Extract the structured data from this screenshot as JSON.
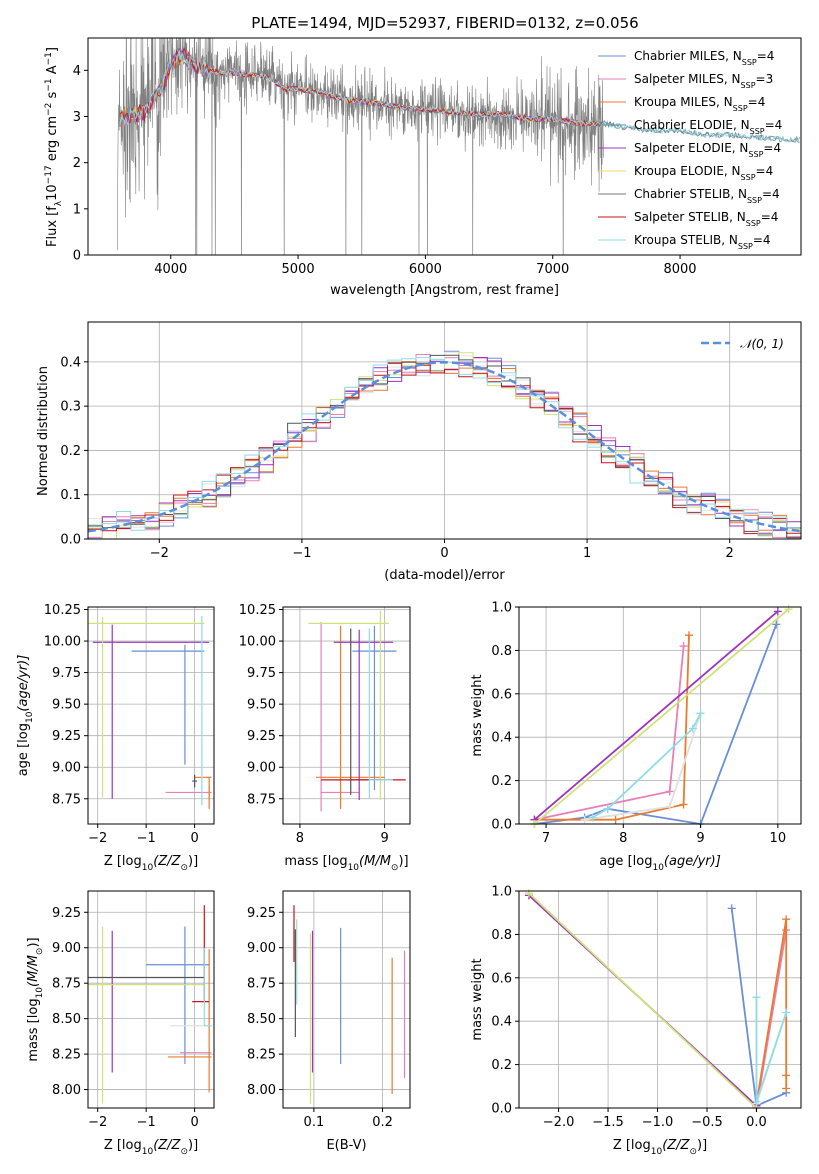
{
  "figure": {
    "title": "PLATE=1494, MJD=52937, FIBERID=0132, z=0.056"
  },
  "colors": {
    "spectrum": "#7f7f7f",
    "grid": "#b0b0b0",
    "gauss": "#5b8fd9",
    "models": [
      "#6a8ed8",
      "#e77fb8",
      "#ec7a2c",
      "#5c8fa0",
      "#9d34c0",
      "#f2d95c",
      "#7a7a7a",
      "#c8141c",
      "#8fdce9"
    ],
    "bright": [
      "#6a8ed8",
      "#e77fb8",
      "#ec7a2c",
      "#e0e0e0",
      "#9d34c0",
      "#cfe37a",
      "#555555",
      "#c8141c",
      "#8fdce9"
    ]
  },
  "legend_names": [
    "Chabrier MILES, N",
    "Salpeter MILES, N",
    "Kroupa MILES, N",
    "Chabrier ELODIE, N",
    "Salpeter ELODIE, N",
    "Kroupa ELODIE, N",
    "Chabrier STELIB, N",
    "Salpeter STELIB, N",
    "Kroupa STELIB, N"
  ],
  "legend_sub": "SSP",
  "legend_vals": [
    "=4",
    "=3",
    "=4",
    "=4",
    "=4",
    "=4",
    "=4",
    "=4",
    "=4"
  ],
  "gauss_legend": "𝒩(0, 1)",
  "chart_data": [
    {
      "type": "line",
      "title": "PLATE=1494, MJD=52937, FIBERID=0132, z=0.056",
      "xlabel": "wavelength [Angstrom, rest frame]",
      "ylabel_parts": [
        "Flux [f",
        "λ",
        "10",
        "−17",
        " erg cm",
        "−2",
        " s",
        "−1",
        " A",
        "−1",
        "]"
      ],
      "xlim": [
        3350,
        8950
      ],
      "ylim": [
        0,
        4.7
      ],
      "xticks": [
        4000,
        5000,
        6000,
        7000,
        8000
      ],
      "yticks": [
        0,
        1,
        2,
        3,
        4
      ],
      "observed_range": [
        3580,
        7400
      ],
      "model_continuum": {
        "x": [
          3600,
          3700,
          3800,
          3900,
          4000,
          4100,
          4200,
          4300,
          4400,
          4500,
          4600,
          4700,
          4800,
          4900,
          5000,
          5200,
          5400,
          5600,
          5800,
          6000,
          6200,
          6400,
          6600,
          6800,
          7000,
          7200,
          7400,
          7600,
          7800,
          8000,
          8200,
          8400,
          8600,
          8800
        ],
        "y": [
          3.0,
          3.0,
          3.1,
          3.5,
          4.1,
          4.35,
          4.1,
          4.0,
          3.95,
          3.95,
          3.9,
          3.9,
          3.8,
          3.6,
          3.6,
          3.5,
          3.35,
          3.3,
          3.2,
          3.15,
          3.1,
          3.05,
          3.05,
          2.95,
          2.95,
          2.85,
          2.85,
          2.75,
          2.7,
          2.7,
          2.6,
          2.6,
          2.55,
          2.5
        ]
      }
    },
    {
      "type": "step",
      "xlabel": "(data-model)/error",
      "ylabel": "Normed distribution",
      "xlim": [
        -2.5,
        2.5
      ],
      "ylim": [
        0,
        0.49
      ],
      "xticks": [
        -2,
        -1,
        0,
        1,
        2
      ],
      "yticks": [
        0.0,
        0.1,
        0.2,
        0.3,
        0.4
      ],
      "bin_width": 0.1,
      "gaussian": {
        "mean": 0,
        "sigma": 1
      }
    },
    {
      "type": "errorbar",
      "xlabel_parts": [
        "Z [log",
        "10",
        "(Z/Z",
        "⊙",
        ")]"
      ],
      "ylabel_parts": [
        "age  [log",
        "10",
        "(age/yr)]"
      ],
      "xlim": [
        -2.2,
        0.4
      ],
      "ylim": [
        8.55,
        10.27
      ],
      "xticks": [
        -2,
        -1,
        0
      ],
      "yticks": [
        8.75,
        9.0,
        9.25,
        9.5,
        9.75,
        10.0,
        10.25
      ],
      "ytick_labels": [
        "8.75",
        "9.00",
        "9.25",
        "9.50",
        "9.75",
        "10.00",
        "10.25"
      ],
      "series": [
        {
          "x": -0.2,
          "xerr": [
            1.1,
            0.4
          ],
          "y": 9.92,
          "yerr": [
            0.9,
            0.05
          ],
          "color_index": 0
        },
        {
          "x": 0.3,
          "xerr": [
            0.9,
            0.05
          ],
          "y": 8.8,
          "yerr": [
            0.05,
            0.05
          ],
          "color_index": 1
        },
        {
          "x": 0.3,
          "xerr": [
            0.3,
            0.05
          ],
          "y": 8.92,
          "yerr": [
            0.25,
            0.0
          ],
          "color_index": 2
        },
        {
          "x": -1.9,
          "xerr": [
            0.2,
            2.2
          ],
          "y": 9.99,
          "yerr": [
            0.0,
            0.0
          ],
          "color_index": 4
        },
        {
          "x": -1.7,
          "xerr": [
            0.0,
            0.0
          ],
          "y": 9.45,
          "yerr": [
            0.7,
            0.68
          ],
          "color_index": 4
        },
        {
          "x": -1.9,
          "xerr": [
            0.3,
            2.1
          ],
          "y": 10.14,
          "yerr": [
            1.38,
            0.05
          ],
          "color_index": 5
        },
        {
          "x": 0.0,
          "xerr": [
            0.05,
            0.05
          ],
          "y": 8.89,
          "yerr": [
            0.05,
            0.05
          ],
          "color_index": 6
        },
        {
          "x": 0.15,
          "xerr": [
            0.0,
            0.05
          ],
          "y": 9.5,
          "yerr": [
            0.8,
            0.7
          ],
          "color_index": 8
        }
      ]
    },
    {
      "type": "errorbar",
      "xlabel_parts": [
        "mass [log",
        "10",
        "(M/M",
        "⊙",
        ")]"
      ],
      "xlim": [
        7.8,
        9.3
      ],
      "ylim": [
        8.55,
        10.27
      ],
      "xticks": [
        8,
        9
      ],
      "yticks": [
        8.75,
        9.0,
        9.25,
        9.5,
        9.75,
        10.0,
        10.25
      ],
      "ytick_labels": [
        "8.75",
        "9.00",
        "9.25",
        "9.50",
        "9.75",
        "10.00",
        "10.25"
      ],
      "series": [
        {
          "x": 8.88,
          "xerr": [
            0.26,
            0.26
          ],
          "y": 9.92,
          "yerr": [
            1.1,
            0.2
          ],
          "color_index": 0
        },
        {
          "x": 8.25,
          "xerr": [
            0.0,
            0.45
          ],
          "y": 8.8,
          "yerr": [
            0.15,
            1.35
          ],
          "color_index": 1
        },
        {
          "x": 8.48,
          "xerr": [
            0.29,
            0.52
          ],
          "y": 8.92,
          "yerr": [
            0.25,
            1.2
          ],
          "color_index": 2
        },
        {
          "x": 8.7,
          "xerr": [
            0.3,
            0.4
          ],
          "y": 9.99,
          "yerr": [
            1.25,
            0.1
          ],
          "color_index": 4
        },
        {
          "x": 8.95,
          "xerr": [
            0.85,
            0.1
          ],
          "y": 10.14,
          "yerr": [
            1.4,
            0.1
          ],
          "color_index": 5
        },
        {
          "x": 8.6,
          "xerr": [
            0.0,
            0.35
          ],
          "y": 8.9,
          "yerr": [
            0.12,
            1.2
          ],
          "color_index": 6
        },
        {
          "x": 9.0,
          "xerr": [
            0.75,
            0.25
          ],
          "y": 8.9,
          "yerr": [
            0.0,
            0.0
          ],
          "color_index": 7
        },
        {
          "x": 8.82,
          "xerr": [
            0.0,
            0.28
          ],
          "y": 8.9,
          "yerr": [
            0.15,
            1.2
          ],
          "color_index": 8
        }
      ]
    },
    {
      "type": "line",
      "xlabel_parts": [
        "age  [log",
        "10",
        "(age/yr)]"
      ],
      "ylabel": "mass weight",
      "xlim": [
        6.65,
        10.3
      ],
      "ylim": [
        0,
        1.0
      ],
      "xticks": [
        7,
        8,
        9,
        10
      ],
      "yticks": [
        0.0,
        0.2,
        0.4,
        0.6,
        0.8,
        1.0
      ],
      "series": [
        {
          "x": [
            6.85,
            7.5,
            7.8,
            9.0,
            9.98
          ],
          "y": [
            0.0,
            0.03,
            0.07,
            0.0,
            0.92
          ],
          "color_index": 0
        },
        {
          "x": [
            6.85,
            8.6,
            8.78
          ],
          "y": [
            0.02,
            0.15,
            0.82
          ],
          "color_index": 1
        },
        {
          "x": [
            6.85,
            7.9,
            8.78,
            8.85
          ],
          "y": [
            0.02,
            0.02,
            0.09,
            0.87
          ],
          "color_index": 2
        },
        {
          "x": [
            6.85,
            10.0
          ],
          "y": [
            0.02,
            0.98
          ],
          "color_index": 4
        },
        {
          "x": [
            6.85,
            10.14
          ],
          "y": [
            0.0,
            0.99
          ],
          "color_index": 5
        },
        {
          "x": [
            7.5,
            8.6,
            9.0
          ],
          "y": [
            0.02,
            0.08,
            0.51
          ],
          "color_index": 3
        },
        {
          "x": [
            7.6,
            7.8,
            8.9,
            9.0
          ],
          "y": [
            0.03,
            0.07,
            0.44,
            0.51
          ],
          "color_index": 8
        }
      ]
    },
    {
      "type": "errorbar",
      "xlabel_parts": [
        "Z [log",
        "10",
        "(Z/Z",
        "⊙",
        ")]"
      ],
      "ylabel_parts": [
        "mass [log",
        "10",
        "(M/M",
        "⊙",
        ")]"
      ],
      "xlim": [
        -2.2,
        0.4
      ],
      "ylim": [
        7.87,
        9.4
      ],
      "xticks": [
        -2,
        -1,
        0
      ],
      "yticks": [
        8.0,
        8.25,
        8.5,
        8.75,
        9.0,
        9.25
      ],
      "ytick_labels": [
        "8.00",
        "8.25",
        "8.50",
        "8.75",
        "9.00",
        "9.25"
      ],
      "series": [
        {
          "x": -0.2,
          "xerr": [
            0.8,
            0.5
          ],
          "y": 8.88,
          "yerr": [
            0.7,
            0.27
          ],
          "color_index": 0
        },
        {
          "x": 0.2,
          "xerr": [
            0.5,
            0.15
          ],
          "y": 8.26,
          "yerr": [
            0.0,
            0.0
          ],
          "color_index": 1
        },
        {
          "x": 0.3,
          "xerr": [
            0.85,
            0.05
          ],
          "y": 8.23,
          "yerr": [
            0.25,
            0.76
          ],
          "color_index": 2
        },
        {
          "x": 0.0,
          "xerr": [
            0.5,
            0.3
          ],
          "y": 8.45,
          "yerr": [
            0.0,
            0.0
          ],
          "color_index": 3
        },
        {
          "x": -1.7,
          "xerr": [
            0.0,
            0.0
          ],
          "y": 8.62,
          "yerr": [
            0.5,
            0.5
          ],
          "color_index": 4
        },
        {
          "x": -1.9,
          "xerr": [
            0.3,
            2.1
          ],
          "y": 8.74,
          "yerr": [
            0.84,
            0.41
          ],
          "color_index": 5
        },
        {
          "x": -1.9,
          "xerr": [
            0.3,
            2.1
          ],
          "y": 8.79,
          "yerr": [
            0.0,
            0.0
          ],
          "color_index": 6
        },
        {
          "x": 0.2,
          "xerr": [
            0.25,
            0.1
          ],
          "y": 8.62,
          "yerr": [
            0.0,
            0.68
          ],
          "color_index": 7
        },
        {
          "x": 0.2,
          "xerr": [
            0.0,
            0.15
          ],
          "y": 8.45,
          "yerr": [
            0.0,
            0.55
          ],
          "color_index": 8
        }
      ]
    },
    {
      "type": "errorbar",
      "xlabel": "E(B-V)",
      "xlim": [
        0.055,
        0.24
      ],
      "ylim": [
        7.87,
        9.4
      ],
      "xticks": [
        0.1,
        0.2
      ],
      "yticks": [
        8.0,
        8.25,
        8.5,
        8.75,
        9.0,
        9.25
      ],
      "ytick_labels": [
        "8.00",
        "8.25",
        "8.50",
        "8.75",
        "9.00",
        "9.25"
      ],
      "series": [
        {
          "x": 0.139,
          "xerr": [
            0,
            0
          ],
          "y": 8.66,
          "yerr": [
            0.48,
            0.48
          ],
          "color_index": 0
        },
        {
          "x": 0.232,
          "xerr": [
            0,
            0
          ],
          "y": 8.53,
          "yerr": [
            0.45,
            0.45
          ],
          "color_index": 1
        },
        {
          "x": 0.214,
          "xerr": [
            0,
            0
          ],
          "y": 8.45,
          "yerr": [
            0.48,
            0.48
          ],
          "color_index": 2
        },
        {
          "x": 0.098,
          "xerr": [
            0,
            0
          ],
          "y": 8.62,
          "yerr": [
            0.5,
            0.5
          ],
          "color_index": 4
        },
        {
          "x": 0.095,
          "xerr": [
            0,
            0
          ],
          "y": 8.5,
          "yerr": [
            0.6,
            0.6
          ],
          "color_index": 5
        },
        {
          "x": 0.073,
          "xerr": [
            0,
            0
          ],
          "y": 8.75,
          "yerr": [
            0.38,
            0.38
          ],
          "color_index": 6
        },
        {
          "x": 0.071,
          "xerr": [
            0,
            0
          ],
          "y": 9.1,
          "yerr": [
            0.2,
            0.2
          ],
          "color_index": 7
        },
        {
          "x": 0.075,
          "xerr": [
            0,
            0
          ],
          "y": 8.9,
          "yerr": [
            0.3,
            0.3
          ],
          "color_index": 8
        }
      ]
    },
    {
      "type": "line",
      "xlabel_parts": [
        "Z [log",
        "10",
        "(Z/Z",
        "⊙",
        ")]"
      ],
      "ylabel": "mass weight",
      "xlim": [
        -2.4,
        0.45
      ],
      "ylim": [
        0,
        1.0
      ],
      "xticks": [
        -2.0,
        -1.5,
        -1.0,
        -0.5,
        0.0
      ],
      "xtick_labels": [
        "−2.0",
        "−1.5",
        "−1.0",
        "−0.5",
        "0.0"
      ],
      "yticks": [
        0.0,
        0.2,
        0.4,
        0.6,
        0.8,
        1.0
      ],
      "series": [
        {
          "x": [
            -0.25,
            0.0,
            0.3
          ],
          "y": [
            0.92,
            0.01,
            0.07
          ],
          "color_index": 0
        },
        {
          "x": [
            0.0,
            0.3
          ],
          "y": [
            0.0,
            0.82
          ],
          "color_index": 1
        },
        {
          "x": [
            0.0,
            0.3,
            0.3,
            0.3
          ],
          "y": [
            0.02,
            0.87,
            0.09,
            0.15
          ],
          "color_index": 2
        },
        {
          "x": [
            -2.3,
            0.0
          ],
          "y": [
            0.98,
            0.01
          ],
          "color_index": 4
        },
        {
          "x": [
            -2.3,
            0.0
          ],
          "y": [
            0.99,
            0.0
          ],
          "color_index": 5
        },
        {
          "x": [
            0.0,
            0.0,
            0.3
          ],
          "y": [
            0.51,
            0.02,
            0.44
          ],
          "color_index": 3
        },
        {
          "x": [
            0.0,
            0.0,
            0.3
          ],
          "y": [
            0.51,
            0.03,
            0.44
          ],
          "color_index": 8
        }
      ]
    }
  ]
}
